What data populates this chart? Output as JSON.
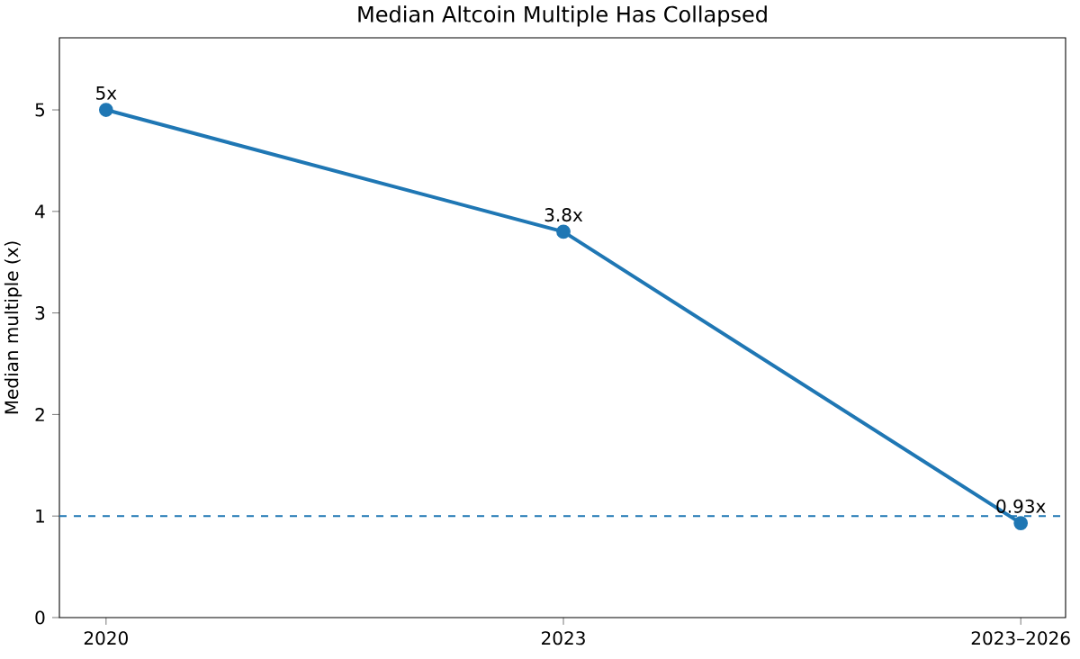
{
  "chart_data": {
    "type": "line",
    "title": "Median Altcoin Multiple Has Collapsed",
    "ylabel": "Median multiple (x)",
    "categories": [
      "2020",
      "2023",
      "2023–2026"
    ],
    "series": [
      {
        "color": "#1f77b4",
        "values": [
          5,
          3.8,
          0.93
        ],
        "value_labels": [
          "5x",
          "3.8x",
          "0.93x"
        ]
      }
    ],
    "ylim": [
      0,
      5.71
    ],
    "yticks": [
      0,
      1,
      2,
      3,
      4,
      5
    ],
    "ref_lines": [
      {
        "axis": "y",
        "value": 1,
        "color": "#1f77b4",
        "line_style": "dashed"
      }
    ],
    "marker": "circle",
    "line_style": "solid"
  }
}
